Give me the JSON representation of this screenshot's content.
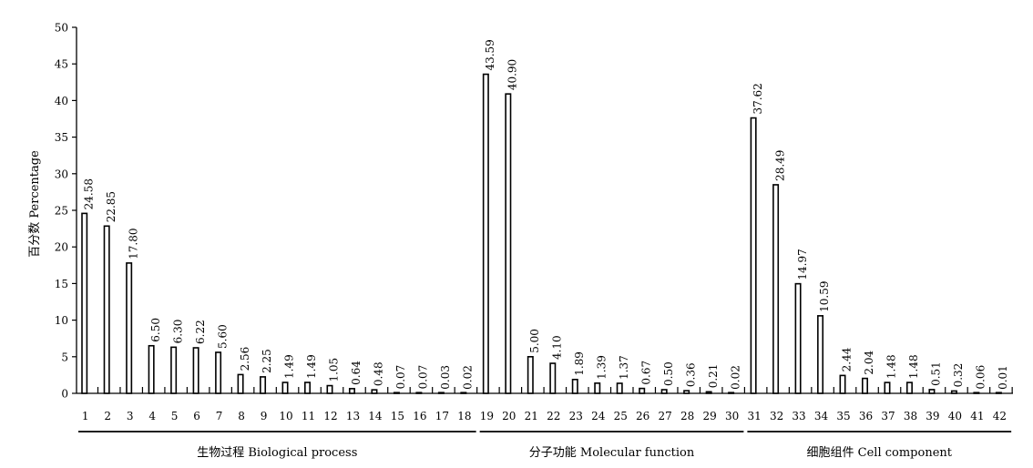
{
  "chart_data": {
    "type": "bar",
    "ylabel": "百分数 Percentage",
    "ylim": [
      0,
      50
    ],
    "yticks": [
      0,
      5,
      10,
      15,
      20,
      25,
      30,
      35,
      40,
      45,
      50
    ],
    "grid": false,
    "categories": [
      "1",
      "2",
      "3",
      "4",
      "5",
      "6",
      "7",
      "8",
      "9",
      "10",
      "11",
      "12",
      "13",
      "14",
      "15",
      "16",
      "17",
      "18",
      "19",
      "20",
      "21",
      "22",
      "23",
      "24",
      "25",
      "26",
      "27",
      "28",
      "29",
      "30",
      "31",
      "32",
      "33",
      "34",
      "35",
      "36",
      "37",
      "38",
      "39",
      "40",
      "41",
      "42"
    ],
    "values": [
      24.58,
      22.85,
      17.8,
      6.5,
      6.3,
      6.22,
      5.6,
      2.56,
      2.25,
      1.49,
      1.49,
      1.05,
      0.64,
      0.48,
      0.07,
      0.07,
      0.03,
      0.02,
      43.59,
      40.9,
      5.0,
      4.1,
      1.89,
      1.39,
      1.37,
      0.67,
      0.5,
      0.36,
      0.21,
      0.02,
      37.62,
      28.49,
      14.97,
      10.59,
      2.44,
      2.04,
      1.48,
      1.48,
      0.51,
      0.32,
      0.06,
      0.01
    ],
    "value_labels": [
      "24.58",
      "22.85",
      "17.80",
      "6.50",
      "6.30",
      "6.22",
      "5.60",
      "2.56",
      "2.25",
      "1.49",
      "1.49",
      "1.05",
      "0.64",
      "0.48",
      "0.07",
      "0.07",
      "0.03",
      "0.02",
      "43.59",
      "40.90",
      "5.00",
      "4.10",
      "1.89",
      "1.39",
      "1.37",
      "0.67",
      "0.50",
      "0.36",
      "0.21",
      "0.02",
      "37.62",
      "28.49",
      "14.97",
      "10.59",
      "2.44",
      "2.04",
      "1.48",
      "1.48",
      "0.51",
      "0.32",
      "0.06",
      "0.01"
    ],
    "groups": [
      {
        "label": "生物过程 Biological process",
        "from": 1,
        "to": 18
      },
      {
        "label": "分子功能 Molecular function",
        "from": 19,
        "to": 30
      },
      {
        "label": "细胞组件 Cell component",
        "from": 31,
        "to": 42
      }
    ]
  }
}
